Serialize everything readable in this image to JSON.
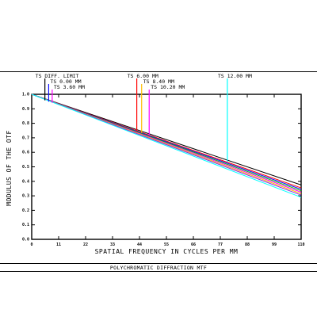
{
  "chart_data": {
    "type": "line",
    "caption": "POLYCHROMATIC DIFFRACTION MTF",
    "xlabel": "SPATIAL FREQUENCY IN CYCLES PER MM",
    "ylabel": "MODULUS OF THE OTF",
    "xlim": [
      0,
      100
    ],
    "ylim": [
      0,
      1.0
    ],
    "x_ticks": [
      0,
      10,
      20,
      30,
      40,
      50,
      60,
      70,
      80,
      90,
      100
    ],
    "x_tick_labels": [
      "0",
      "11",
      "22",
      "33",
      "44",
      "55",
      "66",
      "77",
      "88",
      "99",
      "110"
    ],
    "y_ticks": [
      0,
      0.1,
      0.2,
      0.3,
      0.4,
      0.5,
      0.6,
      0.7,
      0.8,
      0.9,
      1.0
    ],
    "y_tick_labels": [
      "0.0",
      "0.1",
      "0.2",
      "0.3",
      "0.4",
      "0.5",
      "0.6",
      "0.7",
      "0.8",
      "0.9",
      "1.0"
    ],
    "legend": [
      {
        "label": "TS DIFF. LIMIT",
        "color": "#000000",
        "marker_x": 4.9
      },
      {
        "label": "TS 0.00 MM",
        "color": "#1010ff",
        "marker_x": 6.3
      },
      {
        "label": "TS 3.60 MM",
        "color": "#ff00ff",
        "marker_x": 7.6
      },
      {
        "label": "TS 6.00 MM",
        "color": "#ff0000",
        "marker_x": 39.0
      },
      {
        "label": "TS 8.40 MM",
        "color": "#ffbf00",
        "marker_x": 40.8
      },
      {
        "label": "TS 10.20 MM",
        "color": "#ff00ff",
        "marker_x": 43.6
      },
      {
        "label": "TS 12.00 MM",
        "color": "#00ffff",
        "marker_x": 72.6
      }
    ],
    "series": [
      {
        "color": "#000000",
        "x": [
          0,
          100
        ],
        "y": [
          1.0,
          0.375
        ]
      },
      {
        "color": "#ff0000",
        "x": [
          0,
          100
        ],
        "y": [
          1.0,
          0.355
        ]
      },
      {
        "color": "#1010ff",
        "x": [
          0,
          100
        ],
        "y": [
          1.0,
          0.345
        ]
      },
      {
        "color": "#00c000",
        "x": [
          0,
          100
        ],
        "y": [
          1.0,
          0.335
        ]
      },
      {
        "color": "#ff00ff",
        "x": [
          0,
          100
        ],
        "y": [
          1.0,
          0.325
        ]
      },
      {
        "color": "#ffbf00",
        "x": [
          0,
          100
        ],
        "y": [
          1.0,
          0.315
        ]
      },
      {
        "color": "#8a2be2",
        "x": [
          0,
          100
        ],
        "y": [
          1.0,
          0.305
        ]
      },
      {
        "color": "#00ffff",
        "x": [
          0,
          100
        ],
        "y": [
          1.0,
          0.29
        ]
      }
    ],
    "grid": false
  }
}
